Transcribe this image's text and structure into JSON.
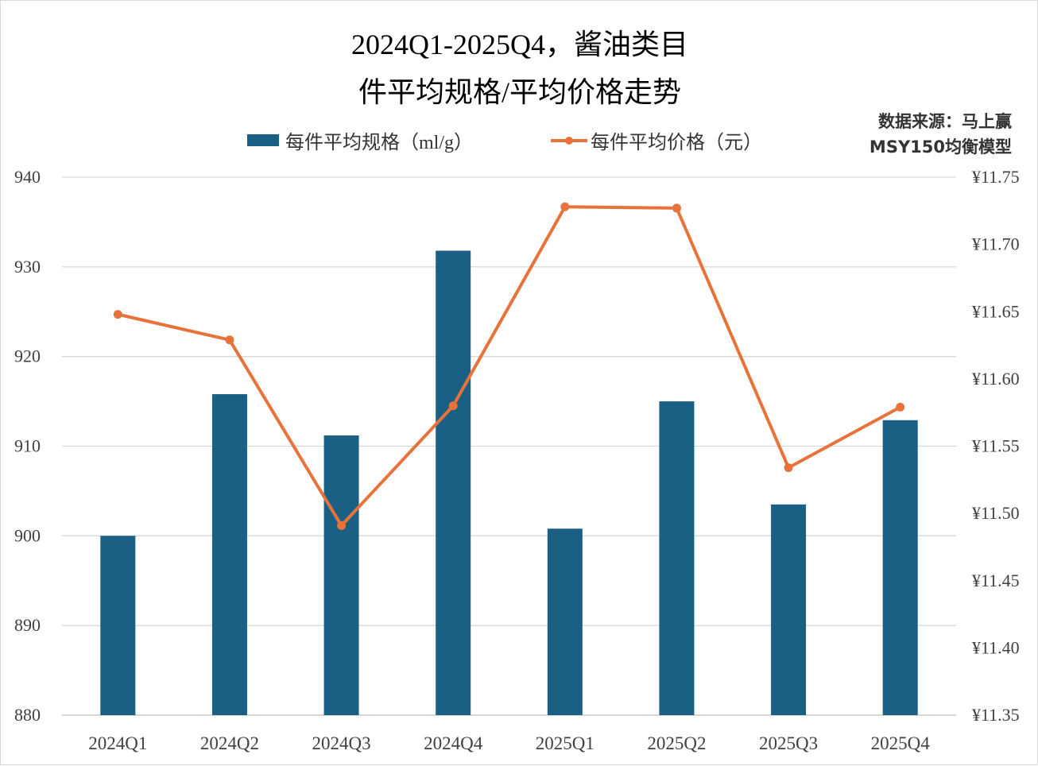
{
  "chart_data": {
    "type": "bar+line",
    "title_line1": "2024Q1-2025Q4，酱油类目",
    "title_line2": "件平均规格/平均价格走势",
    "source_line1": "数据来源：马上赢",
    "source_line2": "MSY150均衡模型",
    "categories": [
      "2024Q1",
      "2024Q2",
      "2024Q3",
      "2024Q4",
      "2025Q1",
      "2025Q2",
      "2025Q3",
      "2025Q4"
    ],
    "series": [
      {
        "name": "每件平均规格（ml/g）",
        "type": "bar",
        "axis": "left",
        "color": "#1a5f84",
        "values": [
          900.0,
          915.8,
          911.2,
          931.8,
          900.8,
          915.0,
          903.5,
          912.9
        ]
      },
      {
        "name": "每件平均价格（元）",
        "type": "line",
        "axis": "right",
        "color": "#e8733a",
        "values": [
          11.648,
          11.629,
          11.491,
          11.58,
          11.728,
          11.727,
          11.534,
          11.579
        ]
      }
    ],
    "left_axis": {
      "ylim": [
        880,
        940
      ],
      "ticks": [
        "880",
        "890",
        "900",
        "910",
        "920",
        "930",
        "940"
      ]
    },
    "right_axis": {
      "ylim": [
        11.35,
        11.75
      ],
      "ticks": [
        "¥11.35",
        "¥11.40",
        "¥11.45",
        "¥11.50",
        "¥11.55",
        "¥11.60",
        "¥11.65",
        "¥11.70",
        "¥11.75"
      ]
    },
    "grid": true,
    "legend_position": "top"
  }
}
